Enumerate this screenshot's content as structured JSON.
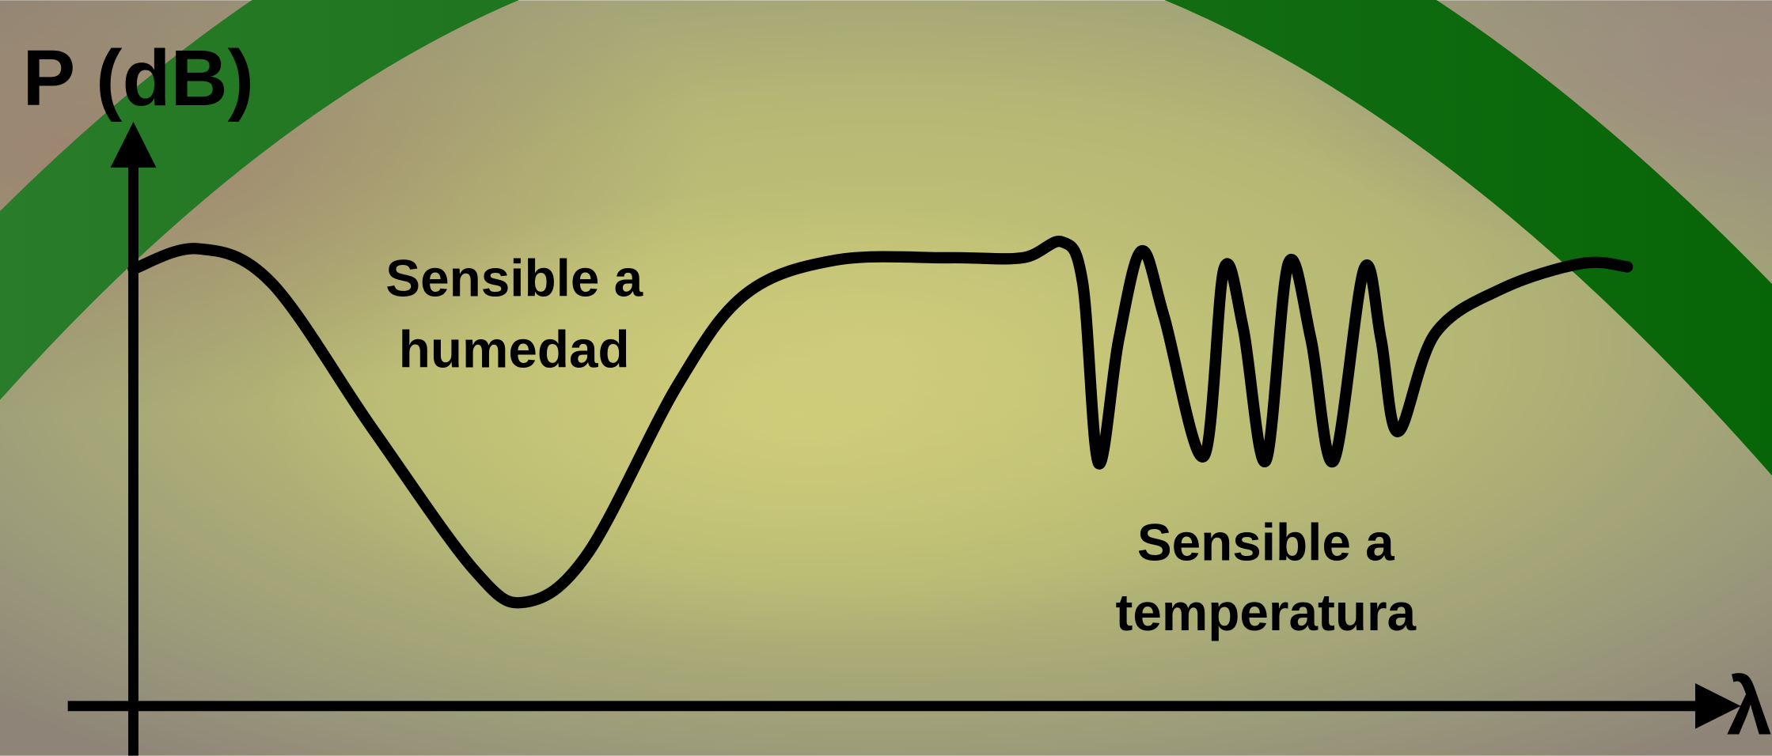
{
  "axes": {
    "y_label": "P (dB)",
    "x_label": "λ"
  },
  "annotations": [
    {
      "lines": [
        "Sensible a",
        "humedad"
      ]
    },
    {
      "lines": [
        "Sensible a",
        "temperatura"
      ]
    }
  ]
}
